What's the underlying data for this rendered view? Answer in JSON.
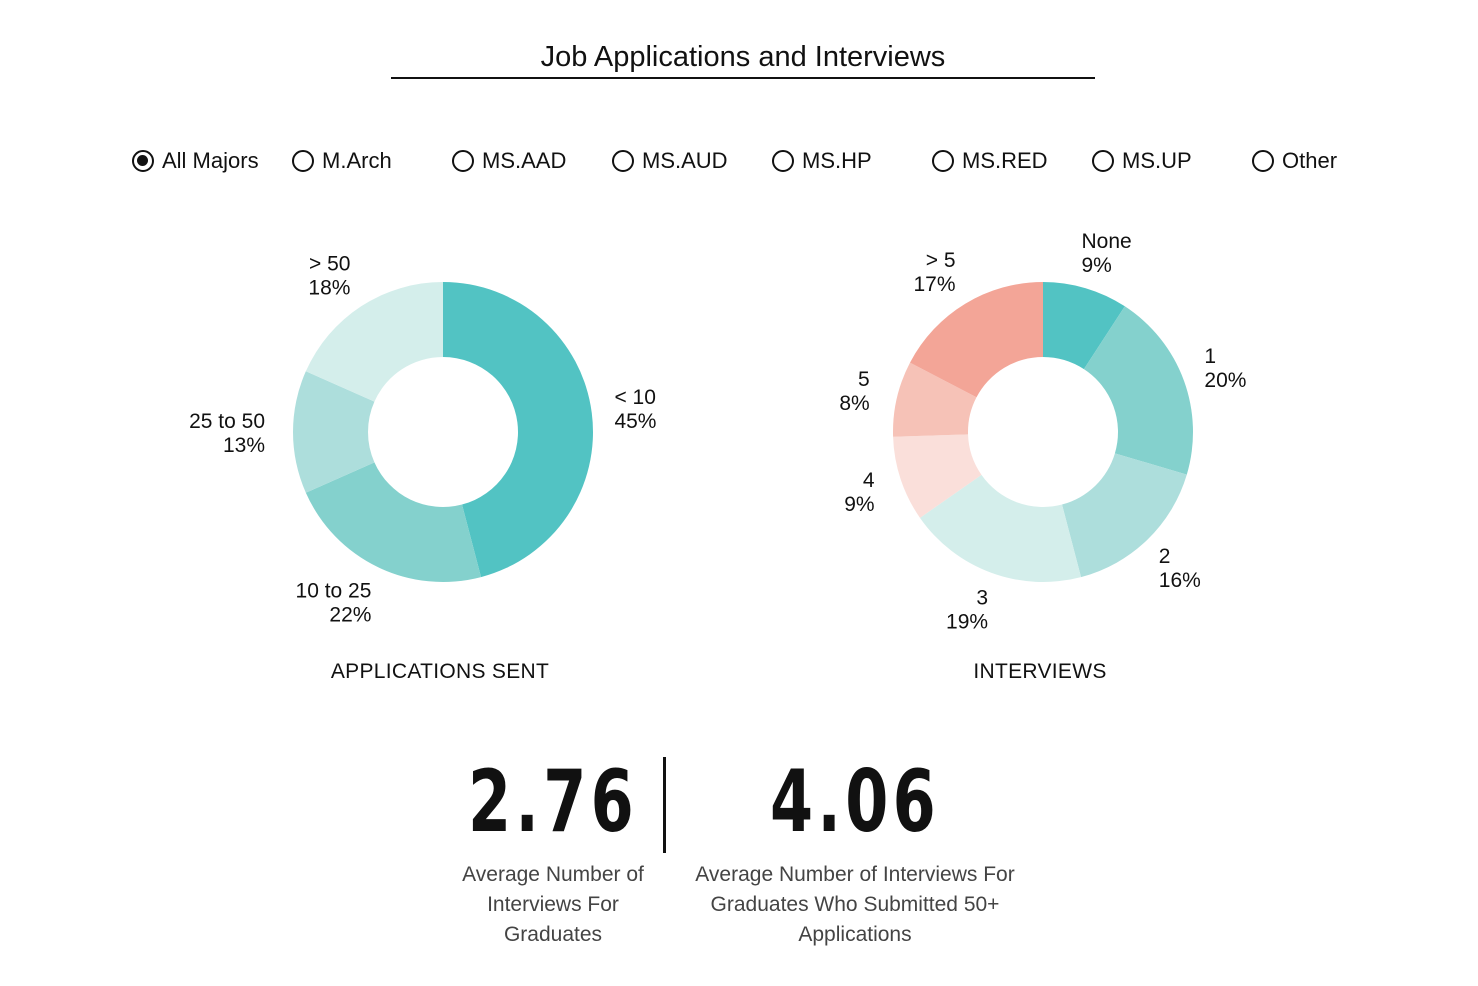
{
  "title": "Job Applications and Interviews",
  "filters": [
    {
      "label": "All Majors",
      "selected": true
    },
    {
      "label": "M.Arch",
      "selected": false
    },
    {
      "label": "MS.AAD",
      "selected": false
    },
    {
      "label": "MS.AUD",
      "selected": false
    },
    {
      "label": "MS.HP",
      "selected": false
    },
    {
      "label": "MS.RED",
      "selected": false
    },
    {
      "label": "MS.UP",
      "selected": false
    },
    {
      "label": "Other",
      "selected": false
    }
  ],
  "chart_data": [
    {
      "type": "pie",
      "donut": true,
      "title": "APPLICATIONS SENT",
      "slices": [
        {
          "label": "< 10",
          "value": 45,
          "pct": "45%",
          "color": "#52c3c3"
        },
        {
          "label": "10 to 25",
          "value": 22,
          "pct": "22%",
          "color": "#84d1cd"
        },
        {
          "label": "25 to 50",
          "value": 13,
          "pct": "13%",
          "color": "#addedc"
        },
        {
          "label": "> 50",
          "value": 18,
          "pct": "18%",
          "color": "#d4eeeb"
        }
      ]
    },
    {
      "type": "pie",
      "donut": true,
      "title": "INTERVIEWS",
      "slices": [
        {
          "label": "None",
          "value": 9,
          "pct": "9%",
          "color": "#52c3c3"
        },
        {
          "label": "1",
          "value": 20,
          "pct": "20%",
          "color": "#84d1cd"
        },
        {
          "label": "2",
          "value": 16,
          "pct": "16%",
          "color": "#addedc"
        },
        {
          "label": "3",
          "value": 19,
          "pct": "19%",
          "color": "#d4eeeb"
        },
        {
          "label": "4",
          "value": 9,
          "pct": "9%",
          "color": "#fadfda"
        },
        {
          "label": "5",
          "value": 8,
          "pct": "8%",
          "color": "#f6c2b7"
        },
        {
          "label": "> 5",
          "value": 17,
          "pct": "17%",
          "color": "#f3a597"
        }
      ]
    }
  ],
  "stats": [
    {
      "value": "2.76",
      "description": [
        "Average Number of",
        "Interviews For",
        "Graduates"
      ]
    },
    {
      "value": "4.06",
      "description": [
        "Average Number of Interviews For",
        "Graduates Who Submitted 50+",
        "Applications"
      ]
    }
  ]
}
